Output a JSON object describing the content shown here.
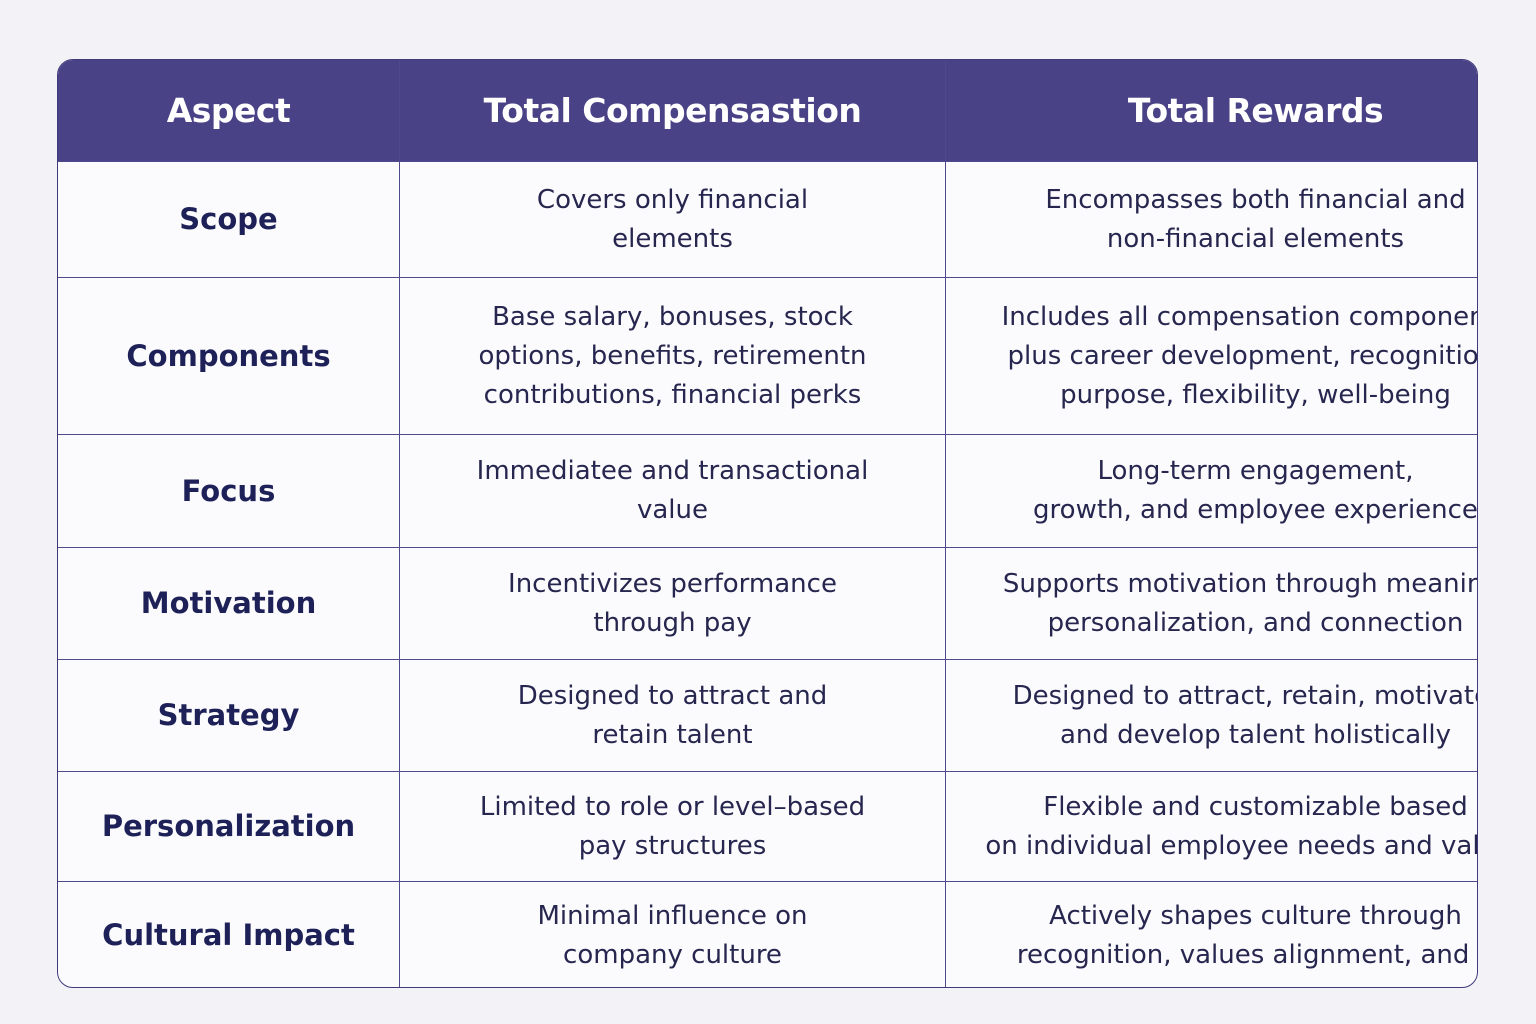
{
  "table": {
    "header": [
      "Aspect",
      "Total Compensastion",
      "Total Rewards"
    ],
    "rows": [
      [
        [
          "Scope"
        ],
        [
          "Covers only financial",
          "elements"
        ],
        [
          "Encompasses both financial and",
          "non-financial elements"
        ]
      ],
      [
        [
          "Components"
        ],
        [
          "Base salary, bonuses, stock",
          "options, benefits, retirementn",
          "contributions, financial perks"
        ],
        [
          "Includes all compensation components",
          "plus career development, recognition,",
          "purpose, flexibility, well-being"
        ]
      ],
      [
        [
          "Focus"
        ],
        [
          "Immediatee and transactional",
          "value"
        ],
        [
          "Long-term engagement,",
          "growth, and employee experience"
        ]
      ],
      [
        [
          "Motivation"
        ],
        [
          "Incentivizes performance",
          "through pay"
        ],
        [
          "Supports motivation through meaning,",
          "personalization, and connection"
        ]
      ],
      [
        [
          "Strategy"
        ],
        [
          "Designed to attract and",
          "retain talent"
        ],
        [
          "Designed to attract, retain, motivate,",
          "and develop talent holistically"
        ]
      ],
      [
        [
          "Personalization"
        ],
        [
          "Limited to role or level–based",
          "pay structures"
        ],
        [
          "Flexible and customizable based",
          "on individual employee needs and values"
        ]
      ],
      [
        [
          "Cultural Impact"
        ],
        [
          "Minimal influence on",
          "company culture"
        ],
        [
          "Actively shapes culture through",
          "recognition, values alignment, and h"
        ]
      ]
    ]
  }
}
